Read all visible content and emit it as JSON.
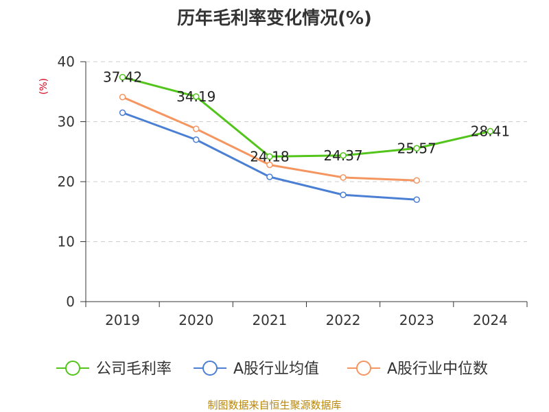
{
  "chart_data": {
    "type": "line",
    "title": "历年毛利率变化情况(%)",
    "ylabel": "(%)",
    "xlabel": "",
    "categories": [
      "2019",
      "2020",
      "2021",
      "2022",
      "2023",
      "2024"
    ],
    "ylim": [
      0,
      40
    ],
    "yticks": [
      0,
      10,
      20,
      30,
      40
    ],
    "grid": "horizontal dashed",
    "legend_position": "bottom",
    "series": [
      {
        "name": "公司毛利率",
        "color": "#52c41a",
        "values": [
          37.42,
          34.19,
          24.18,
          24.37,
          25.57,
          28.41
        ],
        "labels": [
          "37.42",
          "34.19",
          "24.18",
          "24.37",
          "25.57",
          "28.41"
        ],
        "show_labels": true
      },
      {
        "name": "A股行业均值",
        "color": "#4a7fd4",
        "values": [
          31.5,
          27.0,
          20.8,
          17.8,
          17.0,
          null
        ],
        "show_labels": false
      },
      {
        "name": "A股行业中位数",
        "color": "#f59560",
        "values": [
          34.1,
          28.8,
          22.8,
          20.7,
          20.2,
          null
        ],
        "show_labels": false
      }
    ]
  },
  "source": "制图数据来自恒生聚源数据库"
}
